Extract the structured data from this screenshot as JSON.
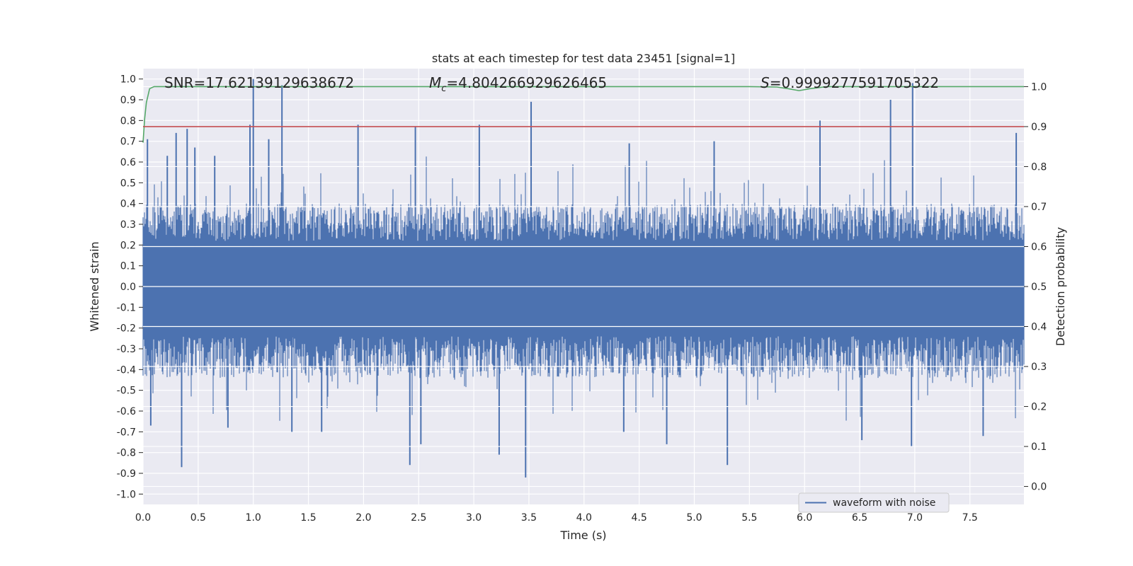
{
  "chart_data": {
    "type": "line",
    "title": "stats at each timestep for test data 23451 [signal=1]",
    "xlabel": "Time (s)",
    "ylabel": "Whitened strain",
    "y2label": "Detection probability",
    "xlim": [
      0.0,
      7.99
    ],
    "ylim": [
      -1.05,
      1.05
    ],
    "y2lim": [
      -0.045,
      1.045
    ],
    "xticks": [
      "0.0",
      "0.5",
      "1.0",
      "1.5",
      "2.0",
      "2.5",
      "3.0",
      "3.5",
      "4.0",
      "4.5",
      "5.0",
      "5.5",
      "6.0",
      "6.5",
      "7.0",
      "7.5"
    ],
    "yticks": [
      "1.0",
      "0.9",
      "0.8",
      "0.7",
      "0.6",
      "0.5",
      "0.4",
      "0.3",
      "0.2",
      "0.1",
      "0.0",
      "-0.1",
      "-0.2",
      "-0.3",
      "-0.4",
      "-0.5",
      "-0.6",
      "-0.7",
      "-0.8",
      "-0.9",
      "-1.0"
    ],
    "y2ticks": [
      "1.0",
      "0.9",
      "0.8",
      "0.7",
      "0.6",
      "0.5",
      "0.4",
      "0.3",
      "0.2",
      "0.1",
      "0.0"
    ],
    "grid": true,
    "legend_position": "lower-right",
    "annotations": {
      "snr": "SNR=17.62139129638672",
      "mc_symbol": "M",
      "mc_subscript": "c",
      "mc_value": "=4.804266929626465",
      "s_symbol": "S",
      "s_value": "=0.9999277591705322"
    },
    "series": [
      {
        "name": "waveform with noise",
        "axis": "left",
        "color": "#4c72b0",
        "style": "dense-noise",
        "spikes": [
          {
            "x": 0.04,
            "y": 0.71
          },
          {
            "x": 0.22,
            "y": 0.63
          },
          {
            "x": 0.3,
            "y": 0.74
          },
          {
            "x": 0.4,
            "y": 0.76
          },
          {
            "x": 0.47,
            "y": 0.67
          },
          {
            "x": 0.65,
            "y": 0.63
          },
          {
            "x": 0.97,
            "y": 0.78
          },
          {
            "x": 1.0,
            "y": 1.0
          },
          {
            "x": 1.14,
            "y": 0.71
          },
          {
            "x": 1.26,
            "y": 0.97
          },
          {
            "x": 1.95,
            "y": 0.78
          },
          {
            "x": 2.47,
            "y": 0.77
          },
          {
            "x": 3.05,
            "y": 0.78
          },
          {
            "x": 3.52,
            "y": 0.89
          },
          {
            "x": 4.41,
            "y": 0.69
          },
          {
            "x": 5.18,
            "y": 0.7
          },
          {
            "x": 6.14,
            "y": 0.8
          },
          {
            "x": 6.78,
            "y": 0.9
          },
          {
            "x": 6.98,
            "y": 0.98
          },
          {
            "x": 7.92,
            "y": 0.74
          },
          {
            "x": 0.07,
            "y": -0.67
          },
          {
            "x": 0.35,
            "y": -0.87
          },
          {
            "x": 0.77,
            "y": -0.68
          },
          {
            "x": 1.35,
            "y": -0.7
          },
          {
            "x": 1.62,
            "y": -0.7
          },
          {
            "x": 2.42,
            "y": -0.86
          },
          {
            "x": 2.52,
            "y": -0.76
          },
          {
            "x": 3.23,
            "y": -0.81
          },
          {
            "x": 3.47,
            "y": -0.92
          },
          {
            "x": 4.36,
            "y": -0.7
          },
          {
            "x": 4.75,
            "y": -0.76
          },
          {
            "x": 5.3,
            "y": -0.86
          },
          {
            "x": 6.52,
            "y": -0.74
          },
          {
            "x": 6.97,
            "y": -0.77
          },
          {
            "x": 7.62,
            "y": -0.72
          }
        ]
      },
      {
        "name": "",
        "axis": "right",
        "color": "#55a868",
        "x": [
          0.0,
          0.015,
          0.03,
          0.06,
          0.1,
          0.2,
          1.0,
          2.0,
          3.0,
          4.0,
          5.0,
          5.5,
          5.75,
          5.85,
          5.95,
          6.05,
          6.2,
          7.0,
          7.99
        ],
        "y": [
          0.86,
          0.92,
          0.96,
          0.995,
          1.0,
          1.0,
          1.0,
          1.0,
          1.0,
          1.0,
          1.0,
          1.0,
          0.999,
          0.995,
          0.99,
          0.995,
          1.0,
          1.0,
          1.0
        ]
      },
      {
        "name": "",
        "axis": "right",
        "color": "#c44e52",
        "x": [
          0.0,
          7.99
        ],
        "y": [
          0.9,
          0.9
        ]
      }
    ]
  }
}
